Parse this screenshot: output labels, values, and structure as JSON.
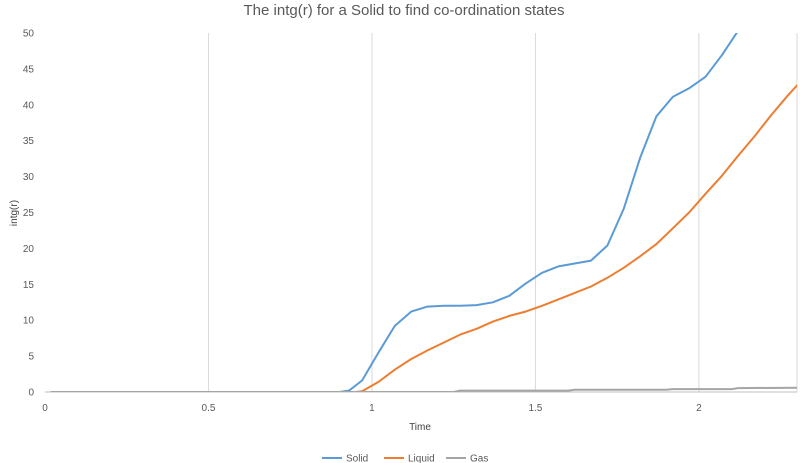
{
  "chart_data": {
    "type": "line",
    "title": "The intg(r) for a Solid to find co-ordination states",
    "xlabel": "Time",
    "ylabel": "intg(r)",
    "xlim": [
      0,
      2.3
    ],
    "ylim": [
      0,
      50
    ],
    "x_ticks": [
      0,
      0.5,
      1,
      1.5,
      2
    ],
    "x_tick_labels": [
      "0",
      "0.5",
      "1",
      "1.5",
      "2"
    ],
    "y_ticks": [
      0,
      5,
      10,
      15,
      20,
      25,
      30,
      35,
      40,
      45,
      50
    ],
    "y_tick_labels": [
      "0",
      "5",
      "10",
      "15",
      "20",
      "25",
      "30",
      "35",
      "40",
      "45",
      "50"
    ],
    "grid": true,
    "grid_axis": "x",
    "legend_position": "bottom",
    "series": [
      {
        "name": "Solid",
        "color": "#5B9BD5",
        "points": [
          [
            0.02,
            0
          ],
          [
            0.9,
            0
          ],
          [
            0.93,
            0.2
          ],
          [
            0.97,
            1.6
          ],
          [
            1.02,
            5.5
          ],
          [
            1.07,
            9.2
          ],
          [
            1.12,
            11.2
          ],
          [
            1.17,
            11.9
          ],
          [
            1.22,
            12
          ],
          [
            1.27,
            12
          ],
          [
            1.32,
            12.1
          ],
          [
            1.37,
            12.5
          ],
          [
            1.42,
            13.4
          ],
          [
            1.47,
            15.1
          ],
          [
            1.52,
            16.6
          ],
          [
            1.57,
            17.5
          ],
          [
            1.62,
            17.9
          ],
          [
            1.67,
            18.3
          ],
          [
            1.72,
            20.4
          ],
          [
            1.77,
            25.5
          ],
          [
            1.82,
            32.6
          ],
          [
            1.87,
            38.4
          ],
          [
            1.92,
            41.1
          ],
          [
            1.97,
            42.3
          ],
          [
            2.02,
            43.9
          ],
          [
            2.07,
            46.9
          ],
          [
            2.12,
            50.3
          ]
        ]
      },
      {
        "name": "Liquid",
        "color": "#ED7D31",
        "points": [
          [
            0.02,
            0
          ],
          [
            0.95,
            0
          ],
          [
            0.97,
            0.1
          ],
          [
            1.02,
            1.4
          ],
          [
            1.07,
            3.1
          ],
          [
            1.12,
            4.6
          ],
          [
            1.17,
            5.8
          ],
          [
            1.22,
            6.9
          ],
          [
            1.27,
            8
          ],
          [
            1.32,
            8.8
          ],
          [
            1.37,
            9.8
          ],
          [
            1.42,
            10.6
          ],
          [
            1.47,
            11.2
          ],
          [
            1.52,
            12
          ],
          [
            1.57,
            12.9
          ],
          [
            1.62,
            13.8
          ],
          [
            1.67,
            14.7
          ],
          [
            1.72,
            15.9
          ],
          [
            1.77,
            17.3
          ],
          [
            1.82,
            18.9
          ],
          [
            1.87,
            20.6
          ],
          [
            1.92,
            22.8
          ],
          [
            1.97,
            25
          ],
          [
            2.02,
            27.6
          ],
          [
            2.07,
            30.1
          ],
          [
            2.12,
            32.9
          ],
          [
            2.17,
            35.6
          ],
          [
            2.22,
            38.5
          ],
          [
            2.27,
            41.2
          ],
          [
            2.3,
            42.7
          ]
        ]
      },
      {
        "name": "Gas",
        "color": "#A5A5A5",
        "points": [
          [
            0.02,
            0
          ],
          [
            1.25,
            0
          ],
          [
            1.27,
            0.2
          ],
          [
            1.6,
            0.2
          ],
          [
            1.62,
            0.3
          ],
          [
            1.9,
            0.3
          ],
          [
            1.92,
            0.4
          ],
          [
            2.1,
            0.4
          ],
          [
            2.12,
            0.55
          ],
          [
            2.3,
            0.6
          ]
        ]
      }
    ]
  }
}
